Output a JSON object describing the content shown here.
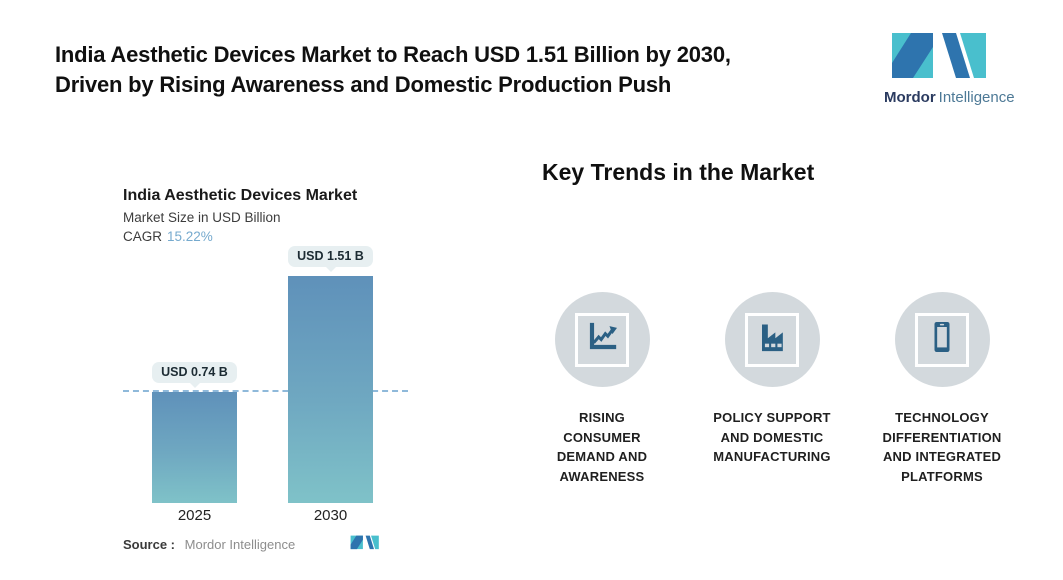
{
  "header": {
    "title_lines": [
      "India Aesthetic Devices Market to Reach USD 1.51 Billion by 2030,",
      "Driven by Rising Awareness and Domestic Production Push"
    ]
  },
  "brand": {
    "name_bold": "Mordor",
    "name_light": "Intelligence"
  },
  "chart_data": {
    "type": "bar",
    "title": "India Aesthetic Devices Market",
    "subtitle": "Market Size in USD Billion",
    "cagr_label": "CAGR",
    "cagr_value": "15.22%",
    "categories": [
      "2025",
      "2030"
    ],
    "values": [
      0.74,
      1.51
    ],
    "value_labels": [
      "USD 0.74 B",
      "USD 1.51 B"
    ],
    "ylabel": "Market Size in USD Billion",
    "ylim": [
      0,
      1.6
    ],
    "grid": false,
    "legend": false,
    "reference_line_y": 0.74,
    "source_label": "Source :",
    "source_value": "Mordor Intelligence"
  },
  "trends": {
    "heading": "Key Trends in the Market",
    "items": [
      {
        "icon": "line-chart-icon",
        "label_lines": [
          "RISING",
          "CONSUMER",
          "DEMAND AND",
          "AWARENESS"
        ]
      },
      {
        "icon": "factory-icon",
        "label_lines": [
          "POLICY SUPPORT",
          "AND DOMESTIC",
          "MANUFACTURING"
        ]
      },
      {
        "icon": "smartphone-icon",
        "label_lines": [
          "TECHNOLOGY",
          "DIFFERENTIATION",
          "AND INTEGRATED",
          "PLATFORMS"
        ]
      }
    ]
  },
  "colors": {
    "accent_teal": "#49BFCD",
    "brand_blue": "#2E74AE",
    "bar_gradient_top": "#5F91BA",
    "bar_gradient_bottom": "#7FC2C8",
    "reference_line": "#8FB9DA",
    "cagr_value_color": "#76AACE",
    "value_pill_bg": "#E7EFF1",
    "trend_circle_bg": "#D3D9DD",
    "trend_icon_blue": "#2B6084"
  }
}
